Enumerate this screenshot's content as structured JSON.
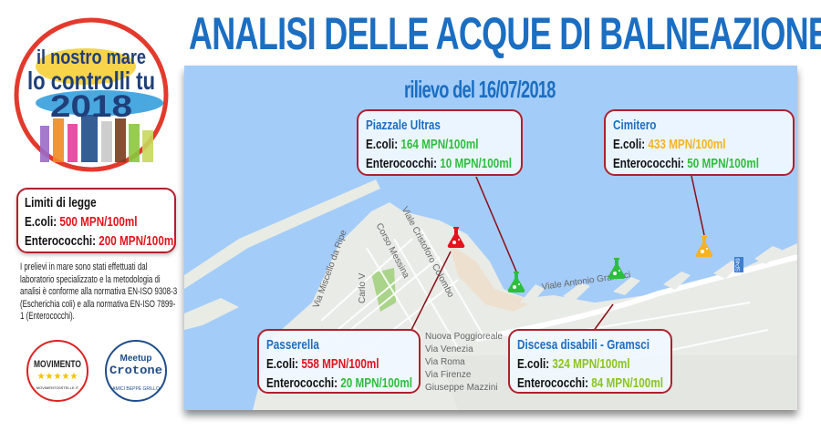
{
  "title": "ANALISI DELLE ACQUE DI BALNEAZIONE",
  "logo": {
    "line1": "il nostro mare",
    "line2": "lo controlli tu",
    "year": "2018"
  },
  "survey_date": "rilievo del 16/07/2018",
  "limits": {
    "heading": "Limiti di legge",
    "ecoli_label": "E.coli:",
    "ecoli_value": "500 MPN/100ml",
    "entero_label": "Enterococchi:",
    "entero_value": "200 MPN/100ml"
  },
  "note": "I prelievi in mare sono stati effettuati dal laboratorio specializzato e la metodologia di analisi è conforme alla normativa EN-ISO 9308-3 (Escherichia coli) e alla normativa EN-ISO 7899-1 (Enterococchi).",
  "sites": [
    {
      "name": "Piazzale Ultras",
      "ecoli_label": "E.coli:",
      "ecoli": "164 MPN/100ml",
      "ecoli_color": "#2cbf3c",
      "entero_label": "Enterococchi:",
      "entero": "10 MPN/100ml",
      "entero_color": "#2cbf3c",
      "marker_color": "#2cbf3c"
    },
    {
      "name": "Cimitero",
      "ecoli_label": "E.coli:",
      "ecoli": "433 MPN/100ml",
      "ecoli_color": "#f5b321",
      "entero_label": "Enterococchi:",
      "entero": "50 MPN/100ml",
      "entero_color": "#2cbf3c",
      "marker_color": "#f5b321"
    },
    {
      "name": "Passerella",
      "ecoli_label": "E.coli:",
      "ecoli": "558 MPN/100ml",
      "ecoli_color": "#e3121c",
      "entero_label": "Enterococchi:",
      "entero": "20 MPN/100ml",
      "entero_color": "#2cbf3c",
      "marker_color": "#e3121c"
    },
    {
      "name": "Discesa disabili - Gramsci",
      "ecoli_label": "E.coli:",
      "ecoli": "324 MPN/100ml",
      "ecoli_color": "#8cc41c",
      "entero_label": "Enterococchi:",
      "entero": "84 MPN/100ml",
      "entero_color": "#8cc41c",
      "marker_color": "#2cbf3c"
    }
  ],
  "streets": [
    "Viale Cristoforo Colombo",
    "Corso Messina",
    "Via Miscello da Ripe",
    "Carlo V",
    "Viale Antonio Gramsci",
    "Nuova Poggioreale",
    "Via Venezia",
    "Via Roma",
    "Via Firenze",
    "Giuseppe Mazzini",
    "SP49"
  ],
  "partner_logos": {
    "m5s": {
      "text": "MOVIMENTO",
      "url_text": "MOVIMENTO5STELLE.IT"
    },
    "meetup": {
      "line1": "Meetup",
      "line2": "Crotone",
      "line3": "AMICI BEPPE GRILLO"
    }
  }
}
